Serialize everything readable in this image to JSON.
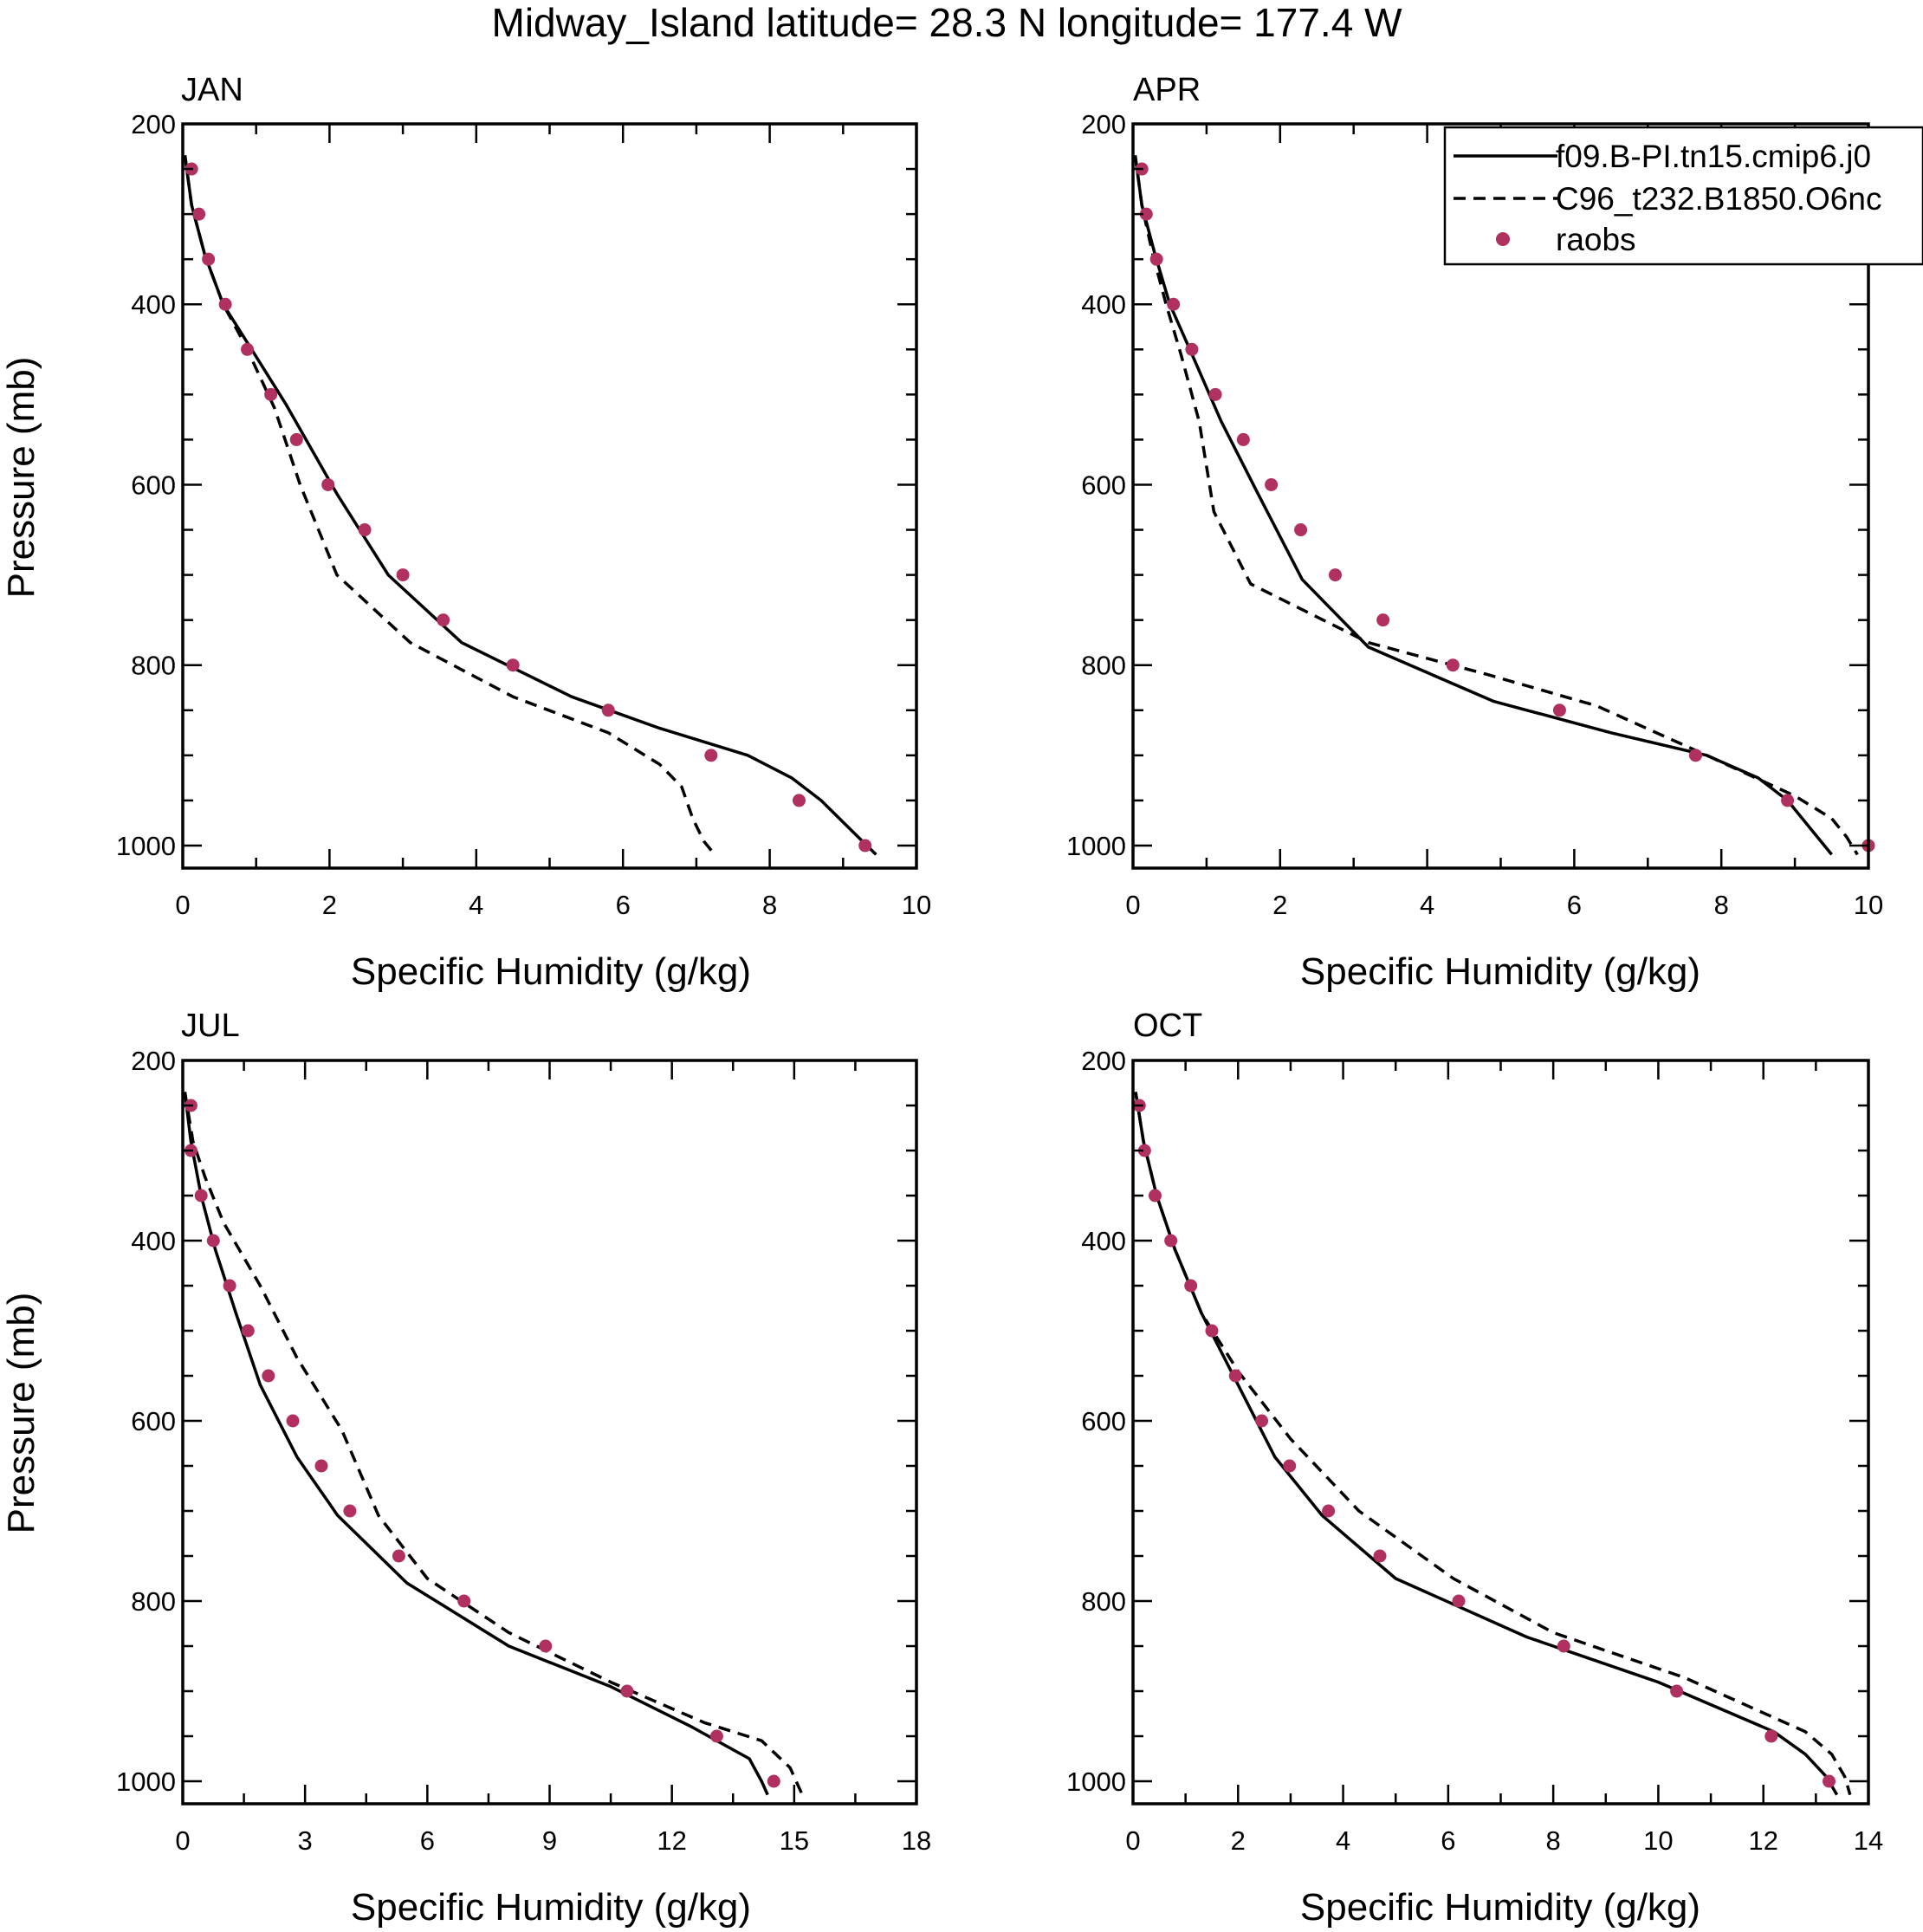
{
  "figure": {
    "title": "Midway_Island  latitude= 28.3 N longitude= 177.4 W"
  },
  "colors": {
    "axis": "#000000",
    "line": "#000000",
    "obs": "#b03060",
    "background": "#ffffff"
  },
  "legend": {
    "placement": "top-right of APR panel",
    "entries": [
      {
        "label": "f09.B-PI.tn15.cmip6.j0",
        "style": "solid"
      },
      {
        "label": "C96_t232.B1850.O6nc",
        "style": "dashed"
      },
      {
        "label": "raobs",
        "style": "marker"
      }
    ]
  },
  "chart_data": [
    {
      "type": "line",
      "panel": "JAN",
      "title": "JAN",
      "xlabel": "Specific Humidity (g/kg)",
      "ylabel": "Pressure (mb)",
      "xlim": [
        0,
        10
      ],
      "ylim": [
        200,
        1025
      ],
      "y_inverted": true,
      "xticks": [
        0,
        2,
        4,
        6,
        8,
        10
      ],
      "xtick_labels": [
        "0",
        "2",
        "4",
        "6",
        "8",
        "10"
      ],
      "yticks": [
        200,
        400,
        600,
        800,
        1000
      ],
      "ytick_labels": [
        "200",
        "400",
        "600",
        "800",
        "1000"
      ],
      "series": [
        {
          "name": "f09.B-PI.tn15.cmip6.j0",
          "style": "solid",
          "x": [
            0.03,
            0.12,
            0.3,
            0.55,
            0.9,
            1.4,
            2.1,
            2.8,
            3.8,
            5.3,
            6.5,
            7.7,
            8.3,
            8.7,
            9.2,
            9.45
          ],
          "y": [
            235,
            290,
            345,
            400,
            445,
            510,
            610,
            700,
            775,
            835,
            870,
            900,
            925,
            950,
            990,
            1010
          ]
        },
        {
          "name": "C96_t232.B1850.O6nc",
          "style": "dashed",
          "x": [
            0.03,
            0.12,
            0.3,
            0.55,
            0.85,
            1.25,
            1.6,
            2.1,
            3.1,
            4.5,
            5.8,
            6.5,
            6.8,
            6.95,
            7.1,
            7.25
          ],
          "y": [
            235,
            290,
            345,
            400,
            445,
            515,
            600,
            700,
            775,
            835,
            875,
            910,
            935,
            970,
            995,
            1010
          ]
        },
        {
          "name": "raobs",
          "style": "marker",
          "x": [
            0.12,
            0.22,
            0.35,
            0.58,
            0.88,
            1.2,
            1.55,
            1.98,
            2.48,
            3.0,
            3.55,
            4.5,
            5.8,
            7.2,
            8.4,
            9.3
          ],
          "y": [
            250,
            300,
            350,
            400,
            450,
            500,
            550,
            600,
            650,
            700,
            750,
            800,
            850,
            900,
            950,
            1000
          ]
        }
      ]
    },
    {
      "type": "line",
      "panel": "APR",
      "title": "APR",
      "xlabel": "Specific Humidity (g/kg)",
      "ylabel": "",
      "xlim": [
        0,
        10
      ],
      "ylim": [
        200,
        1025
      ],
      "y_inverted": true,
      "xticks": [
        0,
        2,
        4,
        6,
        8,
        10
      ],
      "xtick_labels": [
        "0",
        "2",
        "4",
        "6",
        "8",
        "10"
      ],
      "yticks": [
        200,
        400,
        600,
        800,
        1000
      ],
      "ytick_labels": [
        "200",
        "400",
        "600",
        "800",
        "1000"
      ],
      "series": [
        {
          "name": "f09.B-PI.tn15.cmip6.j0",
          "style": "solid",
          "x": [
            0.03,
            0.12,
            0.3,
            0.5,
            0.8,
            1.2,
            1.7,
            2.3,
            3.2,
            4.9,
            6.5,
            7.8,
            8.5,
            8.9,
            9.2,
            9.5
          ],
          "y": [
            235,
            290,
            345,
            400,
            455,
            530,
            610,
            705,
            780,
            840,
            875,
            900,
            925,
            950,
            980,
            1010
          ]
        },
        {
          "name": "C96_t232.B1850.O6nc",
          "style": "dashed",
          "x": [
            0.03,
            0.12,
            0.27,
            0.45,
            0.65,
            0.9,
            1.1,
            1.6,
            3.2,
            4.8,
            6.3,
            7.8,
            9.0,
            9.5,
            9.7,
            9.85
          ],
          "y": [
            235,
            290,
            345,
            400,
            455,
            530,
            630,
            710,
            775,
            810,
            845,
            900,
            945,
            970,
            990,
            1010
          ]
        },
        {
          "name": "raobs",
          "style": "marker",
          "x": [
            0.12,
            0.18,
            0.32,
            0.55,
            0.8,
            1.12,
            1.5,
            1.88,
            2.28,
            2.75,
            3.4,
            4.35,
            5.8,
            7.65,
            8.9,
            10.0
          ],
          "y": [
            250,
            300,
            350,
            400,
            450,
            500,
            550,
            600,
            650,
            700,
            750,
            800,
            850,
            900,
            950,
            1000
          ]
        }
      ]
    },
    {
      "type": "line",
      "panel": "JUL",
      "title": "JUL",
      "xlabel": "Specific Humidity (g/kg)",
      "ylabel": "Pressure (mb)",
      "xlim": [
        0,
        18
      ],
      "ylim": [
        200,
        1025
      ],
      "y_inverted": true,
      "xticks": [
        0,
        3,
        6,
        9,
        12,
        15,
        18
      ],
      "xtick_labels": [
        "0",
        "3",
        "6",
        "9",
        "12",
        "15",
        "18"
      ],
      "yticks": [
        200,
        400,
        600,
        800,
        1000
      ],
      "ytick_labels": [
        "200",
        "400",
        "600",
        "800",
        "1000"
      ],
      "series": [
        {
          "name": "f09.B-PI.tn15.cmip6.j0",
          "style": "solid",
          "x": [
            0.05,
            0.2,
            0.45,
            0.8,
            1.3,
            1.9,
            2.8,
            3.8,
            5.5,
            8.0,
            10.5,
            12.5,
            13.9,
            14.2,
            14.35
          ],
          "y": [
            235,
            290,
            350,
            410,
            480,
            560,
            640,
            705,
            780,
            850,
            895,
            940,
            975,
            1000,
            1015
          ]
        },
        {
          "name": "C96_t232.B1850.O6nc",
          "style": "dashed",
          "x": [
            0.05,
            0.25,
            0.55,
            1.0,
            1.9,
            2.8,
            3.9,
            4.8,
            6.0,
            8.0,
            10.5,
            12.8,
            14.2,
            14.9,
            15.2
          ],
          "y": [
            235,
            290,
            330,
            380,
            450,
            530,
            610,
            705,
            775,
            835,
            890,
            935,
            955,
            985,
            1015
          ]
        },
        {
          "name": "raobs",
          "style": "marker",
          "x": [
            0.2,
            0.2,
            0.45,
            0.75,
            1.15,
            1.6,
            2.1,
            2.7,
            3.4,
            4.1,
            5.3,
            6.9,
            8.9,
            10.9,
            13.1,
            14.5
          ],
          "y": [
            250,
            300,
            350,
            400,
            450,
            500,
            550,
            600,
            650,
            700,
            750,
            800,
            850,
            900,
            950,
            1000
          ]
        }
      ]
    },
    {
      "type": "line",
      "panel": "OCT",
      "title": "OCT",
      "xlabel": "Specific Humidity (g/kg)",
      "ylabel": "",
      "xlim": [
        0,
        14
      ],
      "ylim": [
        200,
        1025
      ],
      "y_inverted": true,
      "xticks": [
        0,
        2,
        4,
        6,
        8,
        10,
        12,
        14
      ],
      "xtick_labels": [
        "0",
        "2",
        "4",
        "6",
        "8",
        "10",
        "12",
        "14"
      ],
      "yticks": [
        200,
        400,
        600,
        800,
        1000
      ],
      "ytick_labels": [
        "200",
        "400",
        "600",
        "800",
        "1000"
      ],
      "series": [
        {
          "name": "f09.B-PI.tn15.cmip6.j0",
          "style": "solid",
          "x": [
            0.05,
            0.2,
            0.45,
            0.8,
            1.3,
            2.0,
            2.7,
            3.6,
            5.0,
            7.5,
            10.0,
            12.2,
            12.8,
            13.2,
            13.4
          ],
          "y": [
            235,
            290,
            350,
            410,
            480,
            560,
            640,
            705,
            775,
            840,
            890,
            945,
            970,
            995,
            1015
          ]
        },
        {
          "name": "C96_t232.B1850.O6nc",
          "style": "dashed",
          "x": [
            0.05,
            0.2,
            0.45,
            0.8,
            1.3,
            2.0,
            3.0,
            4.3,
            6.1,
            8.0,
            10.5,
            12.8,
            13.3,
            13.55,
            13.65
          ],
          "y": [
            235,
            290,
            350,
            410,
            480,
            545,
            620,
            700,
            775,
            835,
            885,
            945,
            970,
            995,
            1015
          ]
        },
        {
          "name": "raobs",
          "style": "marker",
          "x": [
            0.12,
            0.22,
            0.42,
            0.72,
            1.1,
            1.5,
            1.95,
            2.45,
            2.98,
            3.72,
            4.7,
            6.2,
            8.2,
            10.35,
            12.15,
            13.25
          ],
          "y": [
            250,
            300,
            350,
            400,
            450,
            500,
            550,
            600,
            650,
            700,
            750,
            800,
            850,
            900,
            950,
            1000
          ]
        }
      ]
    }
  ]
}
